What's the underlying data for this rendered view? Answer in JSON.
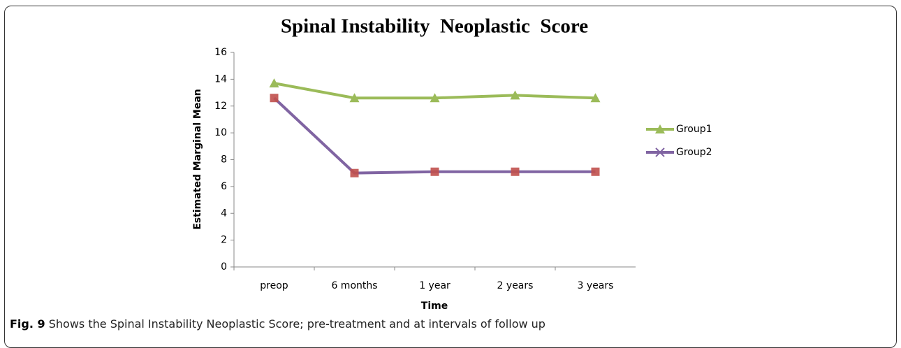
{
  "chart_data": {
    "type": "line",
    "title": "Spinal Instability  Neoplastic  Score",
    "x_label": "Time",
    "y_label": "Estimated Marginal Mean",
    "categories": [
      "preop",
      "6 months",
      "1 year",
      "2 years",
      "3 years"
    ],
    "series": [
      {
        "name": "Group1",
        "color": "#9bbb59",
        "marker": "triangle",
        "values": [
          13.7,
          12.6,
          12.6,
          12.8,
          12.6
        ]
      },
      {
        "name": "Group2",
        "color": "#8064a2",
        "marker": "square",
        "marker_color": "#c0504d",
        "values": [
          12.6,
          7.0,
          7.1,
          7.1,
          7.1
        ]
      }
    ],
    "ylim": [
      0,
      16
    ],
    "yticks": [
      0,
      2,
      4,
      6,
      8,
      10,
      12,
      14,
      16
    ],
    "grid": false,
    "legend": "right"
  },
  "caption_label": "Fig. 9",
  "caption": "Shows the Spinal Instability Neoplastic Score; pre-treatment and at intervals of follow up"
}
